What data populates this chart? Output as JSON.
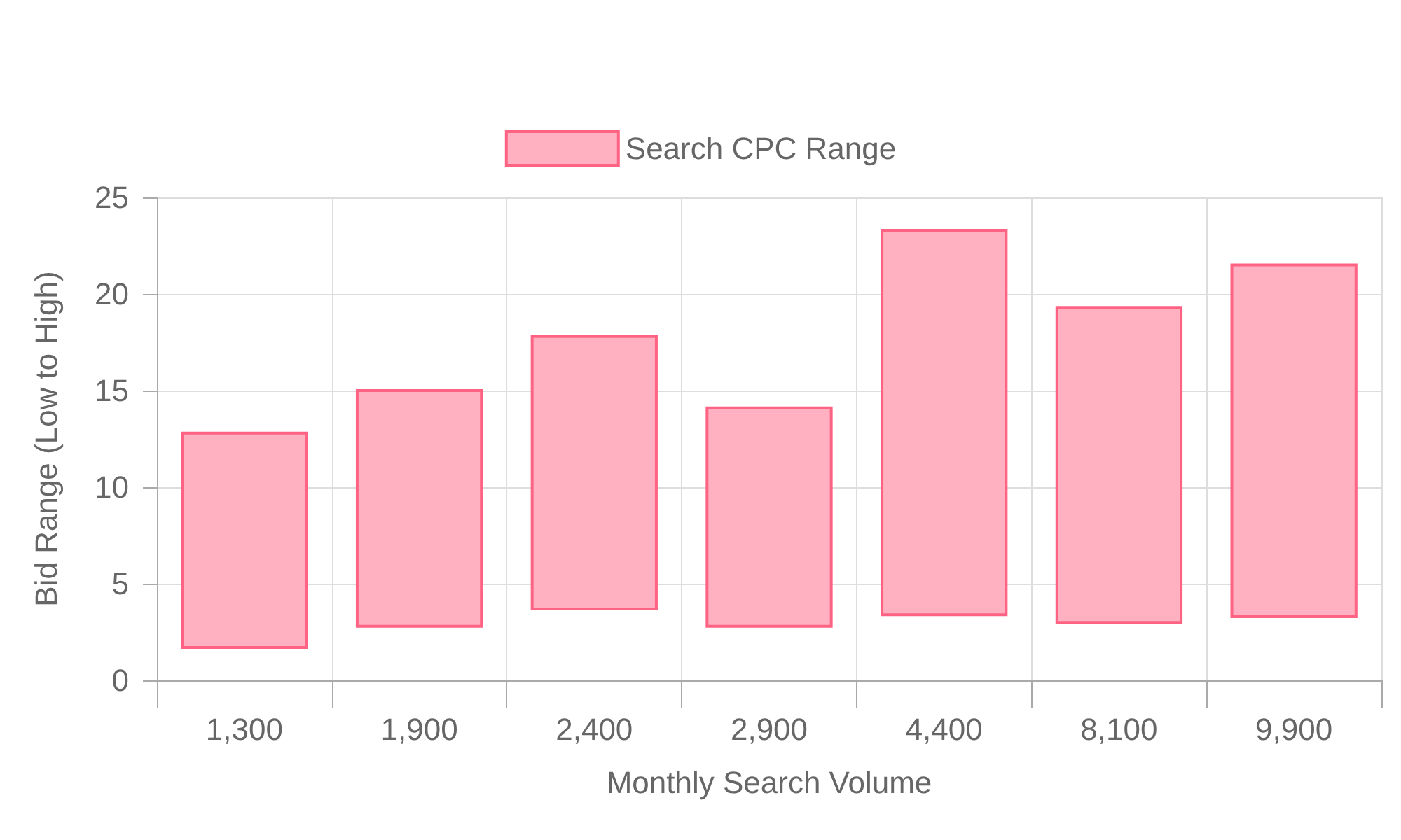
{
  "chart_data": {
    "type": "bar",
    "xlabel": "Monthly Search Volume",
    "ylabel": "Bid Range (Low to High)",
    "categories": [
      "1,300",
      "1,900",
      "2,400",
      "2,900",
      "4,400",
      "8,100",
      "9,900"
    ],
    "series": [
      {
        "name": "Search CPC Range",
        "color": "#ffb1c1",
        "base": [
          1.7,
          2.8,
          3.7,
          2.8,
          3.4,
          3.0,
          3.3
        ],
        "values": [
          11.1,
          12.2,
          14.1,
          11.3,
          19.9,
          16.3,
          18.2
        ]
      }
    ],
    "ylim": [
      0,
      25
    ],
    "yticks": [
      0,
      5,
      10,
      15,
      20,
      25
    ],
    "grid": true,
    "legend": "top"
  }
}
